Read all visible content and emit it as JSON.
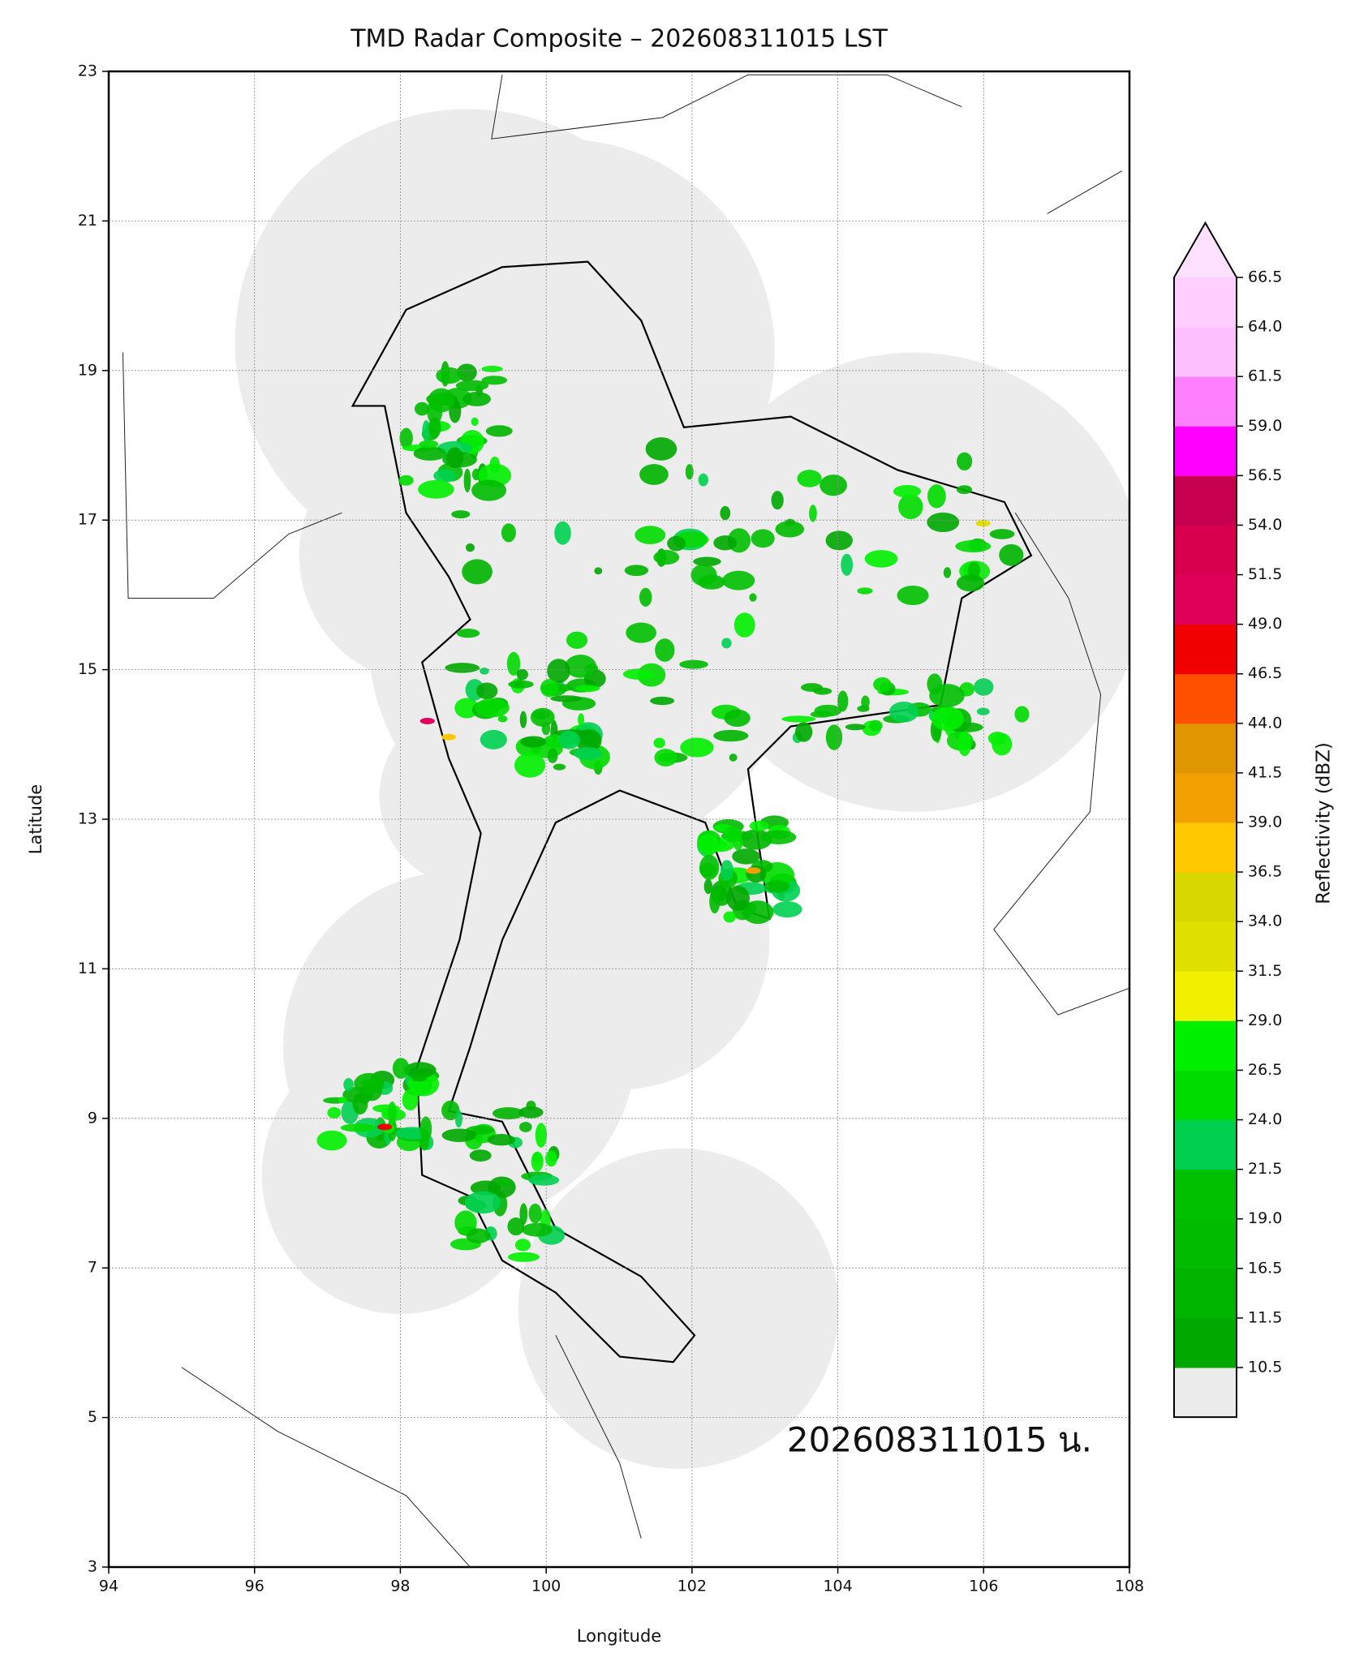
{
  "chart_data": {
    "type": "map",
    "title": "TMD Radar Composite – 202608311015 LST",
    "xlabel": "Longitude",
    "ylabel": "Latitude",
    "xlim": [
      94,
      108
    ],
    "xticks": [
      94,
      96,
      98,
      100,
      102,
      104,
      106,
      108
    ],
    "ylim": [
      3,
      23
    ],
    "yticks": [
      3,
      5,
      7,
      9,
      11,
      13,
      15,
      17,
      19,
      21,
      23
    ],
    "grid": true,
    "timestamp": "202608311015 น.",
    "colorbar": {
      "label": "Reflectivity (dBZ)",
      "ticks": [
        10.5,
        11.5,
        16.5,
        {
          "value": 19,
          "label": "19.0"
        },
        21.5,
        {
          "value": 24,
          "label": "24.0"
        },
        26.5,
        {
          "value": 29,
          "label": "29.0"
        },
        31.5,
        {
          "value": 34,
          "label": "34.0"
        },
        36.5,
        {
          "value": 39,
          "label": "39.0"
        },
        41.5,
        {
          "value": 44,
          "label": "44.0"
        },
        46.5,
        {
          "value": 49,
          "label": "49.0"
        },
        51.5,
        {
          "value": 54,
          "label": "54.0"
        },
        56.5,
        {
          "value": 59,
          "label": "59.0"
        },
        61.5,
        {
          "value": 64,
          "label": "64.0"
        },
        66.5
      ],
      "colors": [
        "#00a800",
        "#00b400",
        "#00bb00",
        "#00c000",
        "#00d050",
        "#00dc00",
        "#00f000",
        "#f0f000",
        "#e0e000",
        "#d8d800",
        "#ffc800",
        "#f0a000",
        "#e09600",
        "#ff5000",
        "#f00000",
        "#e0005a",
        "#d8004e",
        "#c80050",
        "#ff00ff",
        "#ff80ff",
        "#ffc0ff",
        "#ffd0ff"
      ],
      "under_color": "#ececec",
      "over_color": "#ffe0ff"
    }
  }
}
